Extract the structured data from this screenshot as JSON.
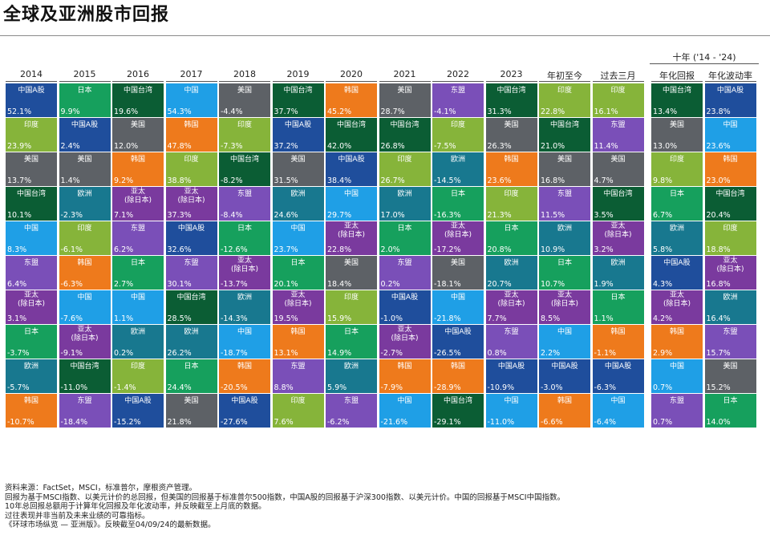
{
  "page": {
    "title": "全球及亚洲股市回报",
    "group_header": "十年 ('14 - '24)",
    "notes": [
      "资料来源：FactSet，MSCI，标准普尔，摩根资产管理。",
      "回报为基于MSCI指数、以美元计价的总回报，但美国的回报基于标准普尔500指数，中国A股的回报基于沪深300指数、以美元计价。中国的回报基于MSCI中国指数。",
      "10年总回报总额用于计算年化回报及年化波动率，并反映截至上月底的数据。",
      "过往表现并非当前及未来业绩的可靠指标。",
      "《环球市场纵览 — 亚洲版》。反映截至04/09/24的最新数据。"
    ]
  },
  "colors": {
    "中国A股": "#1f4e9c",
    "日本": "#16a05d",
    "中国台湾": "#0b5d34",
    "中国": "#1f9fe6",
    "美国": "#5d6166",
    "韩国": "#ee7a1c",
    "东盟": "#7a4fb8",
    "印度": "#86b43a",
    "亚太(除日本)": "#7a3a9e",
    "欧洲": "#18788f"
  },
  "chart_data": {
    "type": "table",
    "title": "全球及亚洲股市回报",
    "columns": [
      "2014",
      "2015",
      "2016",
      "2017",
      "2018",
      "2019",
      "2020",
      "2021",
      "2022",
      "2023",
      "年初至今",
      "过去三月",
      "年化回报",
      "年化波动率"
    ],
    "series": [
      {
        "name": "2014",
        "cells": [
          {
            "label": "中国A股",
            "value": "52.1%"
          },
          {
            "label": "印度",
            "value": "23.9%"
          },
          {
            "label": "美国",
            "value": "13.7%"
          },
          {
            "label": "中国台湾",
            "value": "10.1%"
          },
          {
            "label": "中国",
            "value": "8.3%"
          },
          {
            "label": "东盟",
            "value": "6.4%"
          },
          {
            "label": "亚太(除日本)",
            "value": "3.1%"
          },
          {
            "label": "日本",
            "value": "-3.7%"
          },
          {
            "label": "欧洲",
            "value": "-5.7%"
          },
          {
            "label": "韩国",
            "value": "-10.7%"
          }
        ]
      },
      {
        "name": "2015",
        "cells": [
          {
            "label": "日本",
            "value": "9.9%"
          },
          {
            "label": "中国A股",
            "value": "2.4%"
          },
          {
            "label": "美国",
            "value": "1.4%"
          },
          {
            "label": "欧洲",
            "value": "-2.3%"
          },
          {
            "label": "印度",
            "value": "-6.1%"
          },
          {
            "label": "韩国",
            "value": "-6.3%"
          },
          {
            "label": "中国",
            "value": "-7.6%"
          },
          {
            "label": "亚太(除日本)",
            "value": "-9.1%"
          },
          {
            "label": "中国台湾",
            "value": "-11.0%"
          },
          {
            "label": "东盟",
            "value": "-18.4%"
          }
        ]
      },
      {
        "name": "2016",
        "cells": [
          {
            "label": "中国台湾",
            "value": "19.6%"
          },
          {
            "label": "美国",
            "value": "12.0%"
          },
          {
            "label": "韩国",
            "value": "9.2%"
          },
          {
            "label": "亚太(除日本)",
            "value": "7.1%"
          },
          {
            "label": "东盟",
            "value": "6.2%"
          },
          {
            "label": "日本",
            "value": "2.7%"
          },
          {
            "label": "中国",
            "value": "1.1%"
          },
          {
            "label": "欧洲",
            "value": "0.2%"
          },
          {
            "label": "印度",
            "value": "-1.4%"
          },
          {
            "label": "中国A股",
            "value": "-15.2%"
          }
        ]
      },
      {
        "name": "2017",
        "cells": [
          {
            "label": "中国",
            "value": "54.3%"
          },
          {
            "label": "韩国",
            "value": "47.8%"
          },
          {
            "label": "印度",
            "value": "38.8%"
          },
          {
            "label": "亚太(除日本)",
            "value": "37.3%"
          },
          {
            "label": "中国A股",
            "value": "32.6%"
          },
          {
            "label": "东盟",
            "value": "30.1%"
          },
          {
            "label": "中国台湾",
            "value": "28.5%"
          },
          {
            "label": "欧洲",
            "value": "26.2%"
          },
          {
            "label": "日本",
            "value": "24.4%"
          },
          {
            "label": "美国",
            "value": "21.8%"
          }
        ]
      },
      {
        "name": "2018",
        "cells": [
          {
            "label": "美国",
            "value": "-4.4%"
          },
          {
            "label": "印度",
            "value": "-7.3%"
          },
          {
            "label": "中国台湾",
            "value": "-8.2%"
          },
          {
            "label": "东盟",
            "value": "-8.4%"
          },
          {
            "label": "日本",
            "value": "-12.6%"
          },
          {
            "label": "亚太(除日本)",
            "value": "-13.7%"
          },
          {
            "label": "欧洲",
            "value": "-14.3%"
          },
          {
            "label": "中国",
            "value": "-18.7%"
          },
          {
            "label": "韩国",
            "value": "-20.5%"
          },
          {
            "label": "中国A股",
            "value": "-27.6%"
          }
        ]
      },
      {
        "name": "2019",
        "cells": [
          {
            "label": "中国台湾",
            "value": "37.7%"
          },
          {
            "label": "中国A股",
            "value": "37.2%"
          },
          {
            "label": "美国",
            "value": "31.5%"
          },
          {
            "label": "欧洲",
            "value": "24.6%"
          },
          {
            "label": "中国",
            "value": "23.7%"
          },
          {
            "label": "日本",
            "value": "20.1%"
          },
          {
            "label": "亚太(除日本)",
            "value": "19.5%"
          },
          {
            "label": "韩国",
            "value": "13.1%"
          },
          {
            "label": "东盟",
            "value": "8.8%"
          },
          {
            "label": "印度",
            "value": "7.6%"
          }
        ]
      },
      {
        "name": "2020",
        "cells": [
          {
            "label": "韩国",
            "value": "45.2%"
          },
          {
            "label": "中国台湾",
            "value": "42.0%"
          },
          {
            "label": "中国A股",
            "value": "38.4%"
          },
          {
            "label": "中国",
            "value": "29.7%"
          },
          {
            "label": "亚太(除日本)",
            "value": "22.8%"
          },
          {
            "label": "美国",
            "value": "18.4%"
          },
          {
            "label": "印度",
            "value": "15.9%"
          },
          {
            "label": "日本",
            "value": "14.9%"
          },
          {
            "label": "欧洲",
            "value": "5.9%"
          },
          {
            "label": "东盟",
            "value": "-6.2%"
          }
        ]
      },
      {
        "name": "2021",
        "cells": [
          {
            "label": "美国",
            "value": "28.7%"
          },
          {
            "label": "中国台湾",
            "value": "26.8%"
          },
          {
            "label": "印度",
            "value": "26.7%"
          },
          {
            "label": "欧洲",
            "value": "17.0%"
          },
          {
            "label": "日本",
            "value": "2.0%"
          },
          {
            "label": "东盟",
            "value": "0.2%"
          },
          {
            "label": "中国A股",
            "value": "-1.0%"
          },
          {
            "label": "亚太(除日本)",
            "value": "-2.7%"
          },
          {
            "label": "韩国",
            "value": "-7.9%"
          },
          {
            "label": "中国",
            "value": "-21.6%"
          }
        ]
      },
      {
        "name": "2022",
        "cells": [
          {
            "label": "东盟",
            "value": "-4.1%"
          },
          {
            "label": "印度",
            "value": "-7.5%"
          },
          {
            "label": "欧洲",
            "value": "-14.5%"
          },
          {
            "label": "日本",
            "value": "-16.3%"
          },
          {
            "label": "亚太(除日本)",
            "value": "-17.2%"
          },
          {
            "label": "美国",
            "value": "-18.1%"
          },
          {
            "label": "中国",
            "value": "-21.8%"
          },
          {
            "label": "中国A股",
            "value": "-26.5%"
          },
          {
            "label": "韩国",
            "value": "-28.9%"
          },
          {
            "label": "中国台湾",
            "value": "-29.1%"
          }
        ]
      },
      {
        "name": "2023",
        "cells": [
          {
            "label": "中国台湾",
            "value": "31.3%"
          },
          {
            "label": "美国",
            "value": "26.3%"
          },
          {
            "label": "韩国",
            "value": "23.6%"
          },
          {
            "label": "印度",
            "value": "21.3%"
          },
          {
            "label": "日本",
            "value": "20.8%"
          },
          {
            "label": "欧洲",
            "value": "20.7%"
          },
          {
            "label": "亚太(除日本)",
            "value": "7.7%"
          },
          {
            "label": "东盟",
            "value": "0.8%"
          },
          {
            "label": "中国A股",
            "value": "-10.9%"
          },
          {
            "label": "中国",
            "value": "-11.0%"
          }
        ]
      },
      {
        "name": "年初至今",
        "cells": [
          {
            "label": "印度",
            "value": "22.8%"
          },
          {
            "label": "中国台湾",
            "value": "21.0%"
          },
          {
            "label": "美国",
            "value": "16.8%"
          },
          {
            "label": "东盟",
            "value": "11.5%"
          },
          {
            "label": "欧洲",
            "value": "10.9%"
          },
          {
            "label": "日本",
            "value": "10.7%"
          },
          {
            "label": "亚太(除日本)",
            "value": "8.5%"
          },
          {
            "label": "中国",
            "value": "2.2%"
          },
          {
            "label": "中国A股",
            "value": "-3.0%"
          },
          {
            "label": "韩国",
            "value": "-6.6%"
          }
        ]
      },
      {
        "name": "过去三月",
        "cells": [
          {
            "label": "印度",
            "value": "16.1%"
          },
          {
            "label": "东盟",
            "value": "11.4%"
          },
          {
            "label": "美国",
            "value": "4.7%"
          },
          {
            "label": "中国台湾",
            "value": "3.5%"
          },
          {
            "label": "亚太(除日本)",
            "value": "3.2%"
          },
          {
            "label": "欧洲",
            "value": "1.9%"
          },
          {
            "label": "日本",
            "value": "1.1%"
          },
          {
            "label": "韩国",
            "value": "-1.1%"
          },
          {
            "label": "中国A股",
            "value": "-6.3%"
          },
          {
            "label": "中国",
            "value": "-6.4%"
          }
        ]
      },
      {
        "name": "年化回报",
        "cells": [
          {
            "label": "中国台湾",
            "value": "13.4%"
          },
          {
            "label": "美国",
            "value": "13.0%"
          },
          {
            "label": "印度",
            "value": "9.8%"
          },
          {
            "label": "日本",
            "value": "6.7%"
          },
          {
            "label": "欧洲",
            "value": "5.8%"
          },
          {
            "label": "中国A股",
            "value": "4.3%"
          },
          {
            "label": "亚太(除日本)",
            "value": "4.2%"
          },
          {
            "label": "韩国",
            "value": "2.9%"
          },
          {
            "label": "中国",
            "value": "0.7%"
          },
          {
            "label": "东盟",
            "value": "0.7%"
          }
        ]
      },
      {
        "name": "年化波动率",
        "cells": [
          {
            "label": "中国A股",
            "value": "23.8%"
          },
          {
            "label": "中国",
            "value": "23.6%"
          },
          {
            "label": "韩国",
            "value": "23.0%"
          },
          {
            "label": "中国台湾",
            "value": "20.4%"
          },
          {
            "label": "印度",
            "value": "18.8%"
          },
          {
            "label": "亚太(除日本)",
            "value": "16.8%"
          },
          {
            "label": "欧洲",
            "value": "16.4%"
          },
          {
            "label": "东盟",
            "value": "15.7%"
          },
          {
            "label": "美国",
            "value": "15.2%"
          },
          {
            "label": "日本",
            "value": "14.0%"
          }
        ]
      }
    ]
  }
}
